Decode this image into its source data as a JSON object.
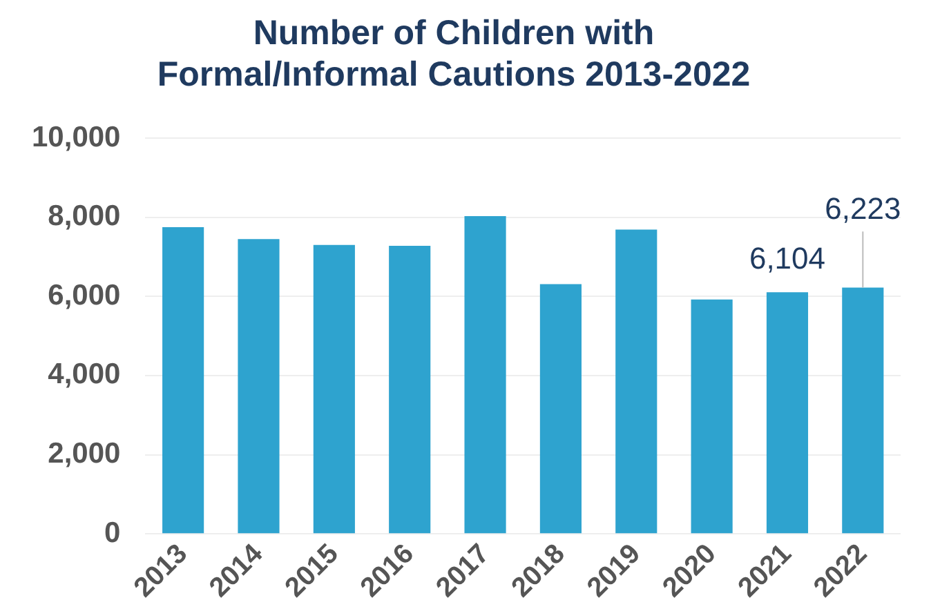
{
  "chart_data": {
    "type": "bar",
    "title": "Number of Children with Formal/Informal Cautions 2013-2022",
    "categories": [
      "2013",
      "2014",
      "2015",
      "2016",
      "2017",
      "2018",
      "2019",
      "2020",
      "2021",
      "2022"
    ],
    "values": [
      7750,
      7450,
      7300,
      7280,
      8030,
      6310,
      7690,
      5920,
      6104,
      6223
    ],
    "value_labels": [
      null,
      null,
      null,
      null,
      null,
      null,
      null,
      null,
      "6,104",
      "6,223"
    ],
    "color": "#2ea3cf",
    "ylim": [
      0,
      10000
    ],
    "yticks": [
      {
        "value": 0,
        "label": "0"
      },
      {
        "value": 2000,
        "label": "2,000"
      },
      {
        "value": 4000,
        "label": "4,000"
      },
      {
        "value": 6000,
        "label": "6,000"
      },
      {
        "value": 8000,
        "label": "8,000"
      },
      {
        "value": 10000,
        "label": "10,000"
      }
    ],
    "grid": "y",
    "legend": false
  }
}
